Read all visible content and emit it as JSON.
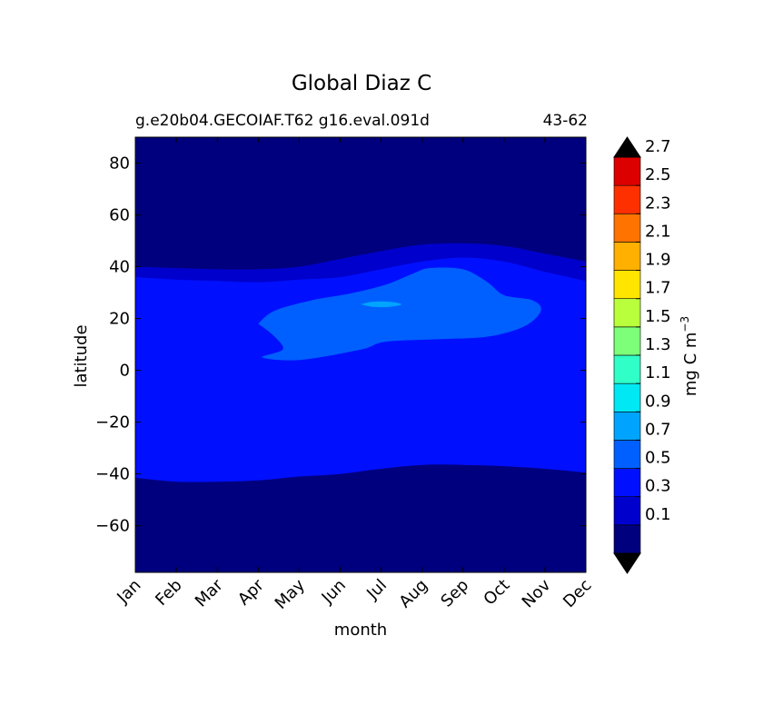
{
  "chart_data": {
    "type": "contour",
    "title": "Global Diaz C",
    "subtitle_left": "g.e20b04.GECOIAF.T62 g16.eval.091d",
    "subtitle_right": "43-62",
    "xlabel": "month",
    "ylabel": "latitude",
    "x_categories": [
      "Jan",
      "Feb",
      "Mar",
      "Apr",
      "May",
      "Jun",
      "Jul",
      "Aug",
      "Sep",
      "Oct",
      "Nov",
      "Dec"
    ],
    "xlim": [
      0,
      11
    ],
    "ylim": [
      -78,
      90
    ],
    "y_ticks": [
      80,
      60,
      40,
      20,
      0,
      -20,
      -40,
      -60
    ],
    "y_tick_labels": [
      "80",
      "60",
      "40",
      "20",
      "0",
      "−20",
      "−40",
      "−60"
    ],
    "colorbar": {
      "label": "mg C m⁻³",
      "label_base": "mg C m",
      "label_exp": "−3",
      "levels": [
        0.0,
        0.2,
        0.4,
        0.6,
        0.8,
        1.0,
        1.2,
        1.4,
        1.6,
        1.8,
        2.0,
        2.2,
        2.4,
        2.6,
        2.8
      ],
      "tick_labels": [
        "0.1",
        "0.3",
        "0.5",
        "0.7",
        "0.9",
        "1.1",
        "1.3",
        "1.5",
        "1.7",
        "1.9",
        "2.1",
        "2.3",
        "2.5",
        "2.7"
      ],
      "colors": [
        "#00007f",
        "#0000cd",
        "#0010ff",
        "#0060ff",
        "#00a4ff",
        "#00e8f4",
        "#30ffc7",
        "#7dff7a",
        "#b9ff3c",
        "#ffe500",
        "#ffb000",
        "#ff7400",
        "#ff3000",
        "#dd0000",
        "#800000"
      ],
      "under_color": "#000000",
      "over_color": "#000000",
      "extend": "both"
    },
    "contours": [
      {
        "level": "0.2-0.4",
        "color": "#0000cd",
        "north_edge": [
          [
            0,
            40
          ],
          [
            1,
            39.5
          ],
          [
            2,
            39
          ],
          [
            3,
            39
          ],
          [
            4,
            40
          ],
          [
            5,
            43
          ],
          [
            6,
            46
          ],
          [
            7,
            48.5
          ],
          [
            8,
            49
          ],
          [
            9,
            48
          ],
          [
            10,
            45
          ],
          [
            11,
            42
          ]
        ],
        "south_edge": [
          [
            0,
            -38
          ],
          [
            1,
            -40
          ],
          [
            2,
            -40.5
          ],
          [
            3,
            -40
          ],
          [
            4,
            -38.5
          ],
          [
            5,
            -37
          ],
          [
            6,
            -35
          ],
          [
            7,
            -33.5
          ],
          [
            8,
            -33
          ],
          [
            9,
            -33.5
          ],
          [
            10,
            -34.5
          ],
          [
            11,
            -36
          ]
        ]
      },
      {
        "level": "0.4-0.6",
        "color": "#0010ff",
        "north_edge": [
          [
            0,
            36
          ],
          [
            1,
            35
          ],
          [
            2,
            34.5
          ],
          [
            3,
            34
          ],
          [
            4,
            35
          ],
          [
            5,
            36
          ],
          [
            6,
            39
          ],
          [
            7,
            42
          ],
          [
            8,
            43.5
          ],
          [
            9,
            42
          ],
          [
            10,
            38
          ],
          [
            11,
            34.5
          ]
        ],
        "south_edge": [
          [
            0,
            -41.5
          ],
          [
            1,
            -43
          ],
          [
            2,
            -43
          ],
          [
            3,
            -42.5
          ],
          [
            4,
            -41
          ],
          [
            5,
            -40
          ],
          [
            6,
            -38
          ],
          [
            7,
            -36.5
          ],
          [
            8,
            -36.5
          ],
          [
            9,
            -37
          ],
          [
            10,
            -38
          ],
          [
            11,
            -39.5
          ]
        ]
      },
      {
        "level": "0.6-0.8",
        "color": "#0060ff",
        "outline": [
          [
            3.0,
            18
          ],
          [
            3.4,
            23
          ],
          [
            4.3,
            27
          ],
          [
            5.2,
            29.5
          ],
          [
            6.1,
            33
          ],
          [
            6.8,
            37.5
          ],
          [
            7.2,
            39.5
          ],
          [
            8.0,
            39
          ],
          [
            8.6,
            34
          ],
          [
            9.0,
            29
          ],
          [
            9.7,
            27
          ],
          [
            9.9,
            23
          ],
          [
            9.5,
            17
          ],
          [
            8.6,
            13
          ],
          [
            7.4,
            12
          ],
          [
            6.1,
            11
          ],
          [
            5.5,
            8
          ],
          [
            4.0,
            4
          ],
          [
            3.1,
            5
          ],
          [
            3.6,
            8
          ],
          [
            3.4,
            13
          ]
        ]
      },
      {
        "level": "0.8-1.0",
        "color": "#00a4ff",
        "outline": [
          [
            5.5,
            25.5
          ],
          [
            5.8,
            26.5
          ],
          [
            6.2,
            26.5
          ],
          [
            6.5,
            25.5
          ],
          [
            6.2,
            24.5
          ],
          [
            5.8,
            24.5
          ]
        ]
      }
    ]
  }
}
